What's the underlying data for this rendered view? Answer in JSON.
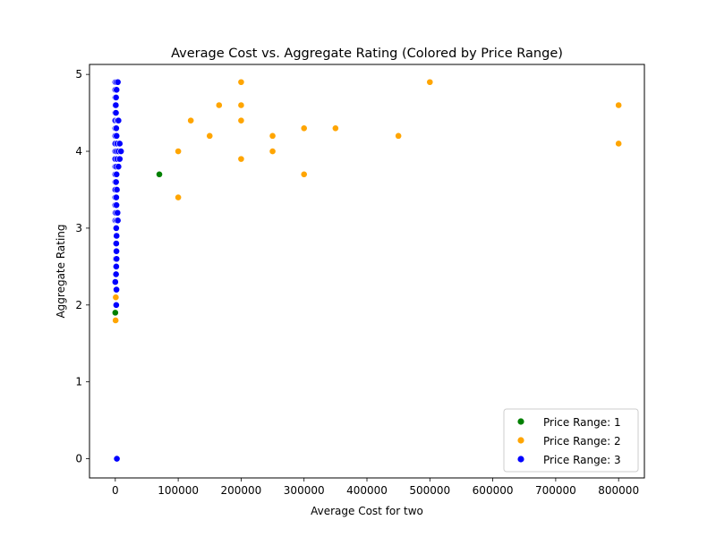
{
  "chart_data": {
    "type": "scatter",
    "title": "Average Cost vs. Aggregate Rating (Colored by Price Range)",
    "xlabel": "Average Cost for two",
    "ylabel": "Aggregate Rating",
    "xlim": [
      -41000,
      841000
    ],
    "ylim": [
      -0.25,
      5.13
    ],
    "xticks": [
      0,
      100000,
      200000,
      300000,
      400000,
      500000,
      600000,
      700000,
      800000
    ],
    "yticks": [
      0,
      1,
      2,
      3,
      4,
      5
    ],
    "grid": false,
    "legend_position": "lower-right",
    "series": [
      {
        "name": "Price Range: 1",
        "color": "#008000",
        "points": [
          [
            70000,
            3.7
          ],
          [
            0,
            1.9
          ],
          [
            300,
            2.6
          ],
          [
            250,
            3.1
          ],
          [
            400,
            3.5
          ],
          [
            200,
            4.0
          ],
          [
            350,
            4.4
          ],
          [
            150,
            3.8
          ],
          [
            500,
            4.2
          ]
        ]
      },
      {
        "name": "Price Range: 2",
        "color": "#ffa500",
        "points": [
          [
            100000,
            4.0
          ],
          [
            100000,
            3.4
          ],
          [
            120000,
            4.4
          ],
          [
            150000,
            4.2
          ],
          [
            165000,
            4.6
          ],
          [
            200000,
            4.9
          ],
          [
            200000,
            4.6
          ],
          [
            200000,
            4.4
          ],
          [
            200000,
            3.9
          ],
          [
            250000,
            4.2
          ],
          [
            250000,
            4.0
          ],
          [
            300000,
            4.3
          ],
          [
            300000,
            3.7
          ],
          [
            350000,
            4.3
          ],
          [
            450000,
            4.2
          ],
          [
            500000,
            4.9
          ],
          [
            800000,
            4.6
          ],
          [
            800000,
            4.1
          ],
          [
            500,
            1.8
          ],
          [
            800,
            2.1
          ],
          [
            600,
            3.3
          ],
          [
            700,
            4.1
          ]
        ]
      },
      {
        "name": "Price Range: 3",
        "color": "#0000ff",
        "points": [
          [
            0,
            4.9
          ],
          [
            1500,
            4.9
          ],
          [
            4000,
            4.9
          ],
          [
            0,
            4.8
          ],
          [
            2000,
            4.8
          ],
          [
            0,
            4.7
          ],
          [
            1200,
            4.7
          ],
          [
            0,
            4.6
          ],
          [
            800,
            4.6
          ],
          [
            0,
            4.5
          ],
          [
            1000,
            4.5
          ],
          [
            0,
            4.4
          ],
          [
            3000,
            4.4
          ],
          [
            5000,
            4.4
          ],
          [
            0,
            4.3
          ],
          [
            1500,
            4.3
          ],
          [
            0,
            4.2
          ],
          [
            2000,
            4.2
          ],
          [
            0,
            4.1
          ],
          [
            3000,
            4.1
          ],
          [
            7000,
            4.1
          ],
          [
            0,
            4.0
          ],
          [
            2000,
            4.0
          ],
          [
            5000,
            4.0
          ],
          [
            9000,
            4.0
          ],
          [
            0,
            3.9
          ],
          [
            3000,
            3.9
          ],
          [
            7000,
            3.9
          ],
          [
            0,
            3.8
          ],
          [
            1500,
            3.8
          ],
          [
            5000,
            3.8
          ],
          [
            0,
            3.7
          ],
          [
            2000,
            3.7
          ],
          [
            0,
            3.6
          ],
          [
            1200,
            3.6
          ],
          [
            0,
            3.5
          ],
          [
            2500,
            3.5
          ],
          [
            0,
            3.4
          ],
          [
            1500,
            3.4
          ],
          [
            0,
            3.3
          ],
          [
            1800,
            3.3
          ],
          [
            0,
            3.2
          ],
          [
            1000,
            3.2
          ],
          [
            3500,
            3.2
          ],
          [
            0,
            3.1
          ],
          [
            2000,
            3.1
          ],
          [
            4000,
            3.1
          ],
          [
            1500,
            3.0
          ],
          [
            2000,
            2.9
          ],
          [
            1500,
            2.8
          ],
          [
            1800,
            2.7
          ],
          [
            800,
            2.6
          ],
          [
            2000,
            2.6
          ],
          [
            1500,
            2.5
          ],
          [
            1200,
            2.4
          ],
          [
            0,
            2.3
          ],
          [
            1800,
            2.2
          ],
          [
            1500,
            2.0
          ],
          [
            2500,
            0.0
          ]
        ]
      }
    ]
  }
}
